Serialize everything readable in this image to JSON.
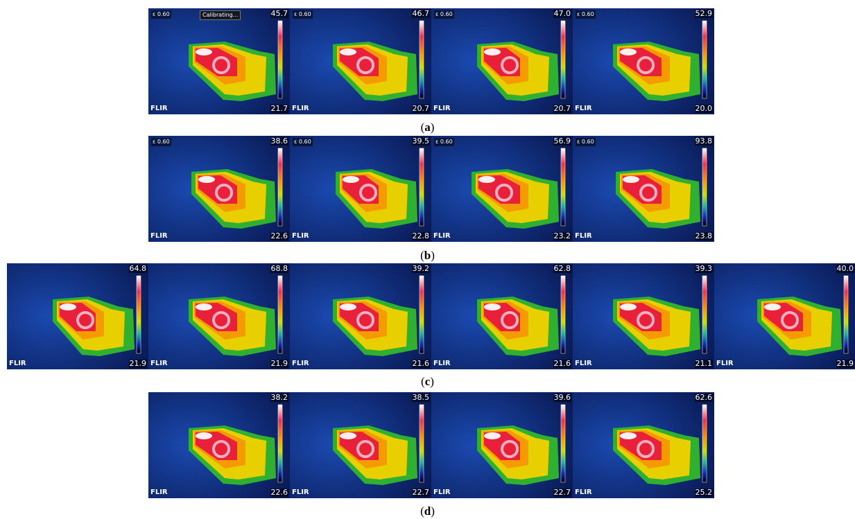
{
  "brand": "FLIR",
  "rows": [
    {
      "caption": [
        "(",
        "a",
        ")"
      ],
      "panels": [
        {
          "emissivity": "ε 0.60",
          "status": "Calibrating...",
          "max": "45.7",
          "min": "21.7"
        },
        {
          "emissivity": "ε 0.60",
          "max": "46.7",
          "min": "20.7"
        },
        {
          "emissivity": "ε 0.60",
          "max": "47.0",
          "min": "20.7"
        },
        {
          "emissivity": "ε 0.60",
          "max": "52.9",
          "min": "20.0"
        }
      ]
    },
    {
      "caption": [
        "(",
        "b",
        ")"
      ],
      "panels": [
        {
          "emissivity": "ε 0.60",
          "max": "38.6",
          "min": "22.6"
        },
        {
          "emissivity": "ε 0.60",
          "max": "39.5",
          "min": "22.8"
        },
        {
          "emissivity": "ε 0.60",
          "max": "56.9",
          "min": "23.2"
        },
        {
          "emissivity": "ε 0.60",
          "max": "93.8",
          "min": "23.8"
        }
      ]
    },
    {
      "caption": [
        "(",
        "c",
        ")"
      ],
      "panels": [
        {
          "max": "64.8",
          "min": "21.9"
        },
        {
          "max": "68.8",
          "min": "21.9"
        },
        {
          "max": "39.2",
          "min": "21.6"
        },
        {
          "max": "62.8",
          "min": "21.6"
        },
        {
          "max": "39.3",
          "min": "21.1"
        },
        {
          "max": "40.0",
          "min": "21.9"
        }
      ]
    },
    {
      "caption": [
        "(",
        "d",
        ")"
      ],
      "panels": [
        {
          "max": "38.2",
          "min": "22.6"
        },
        {
          "max": "38.5",
          "min": "22.7"
        },
        {
          "max": "39.6",
          "min": "22.7"
        },
        {
          "max": "62.6",
          "min": "25.2"
        }
      ]
    }
  ]
}
